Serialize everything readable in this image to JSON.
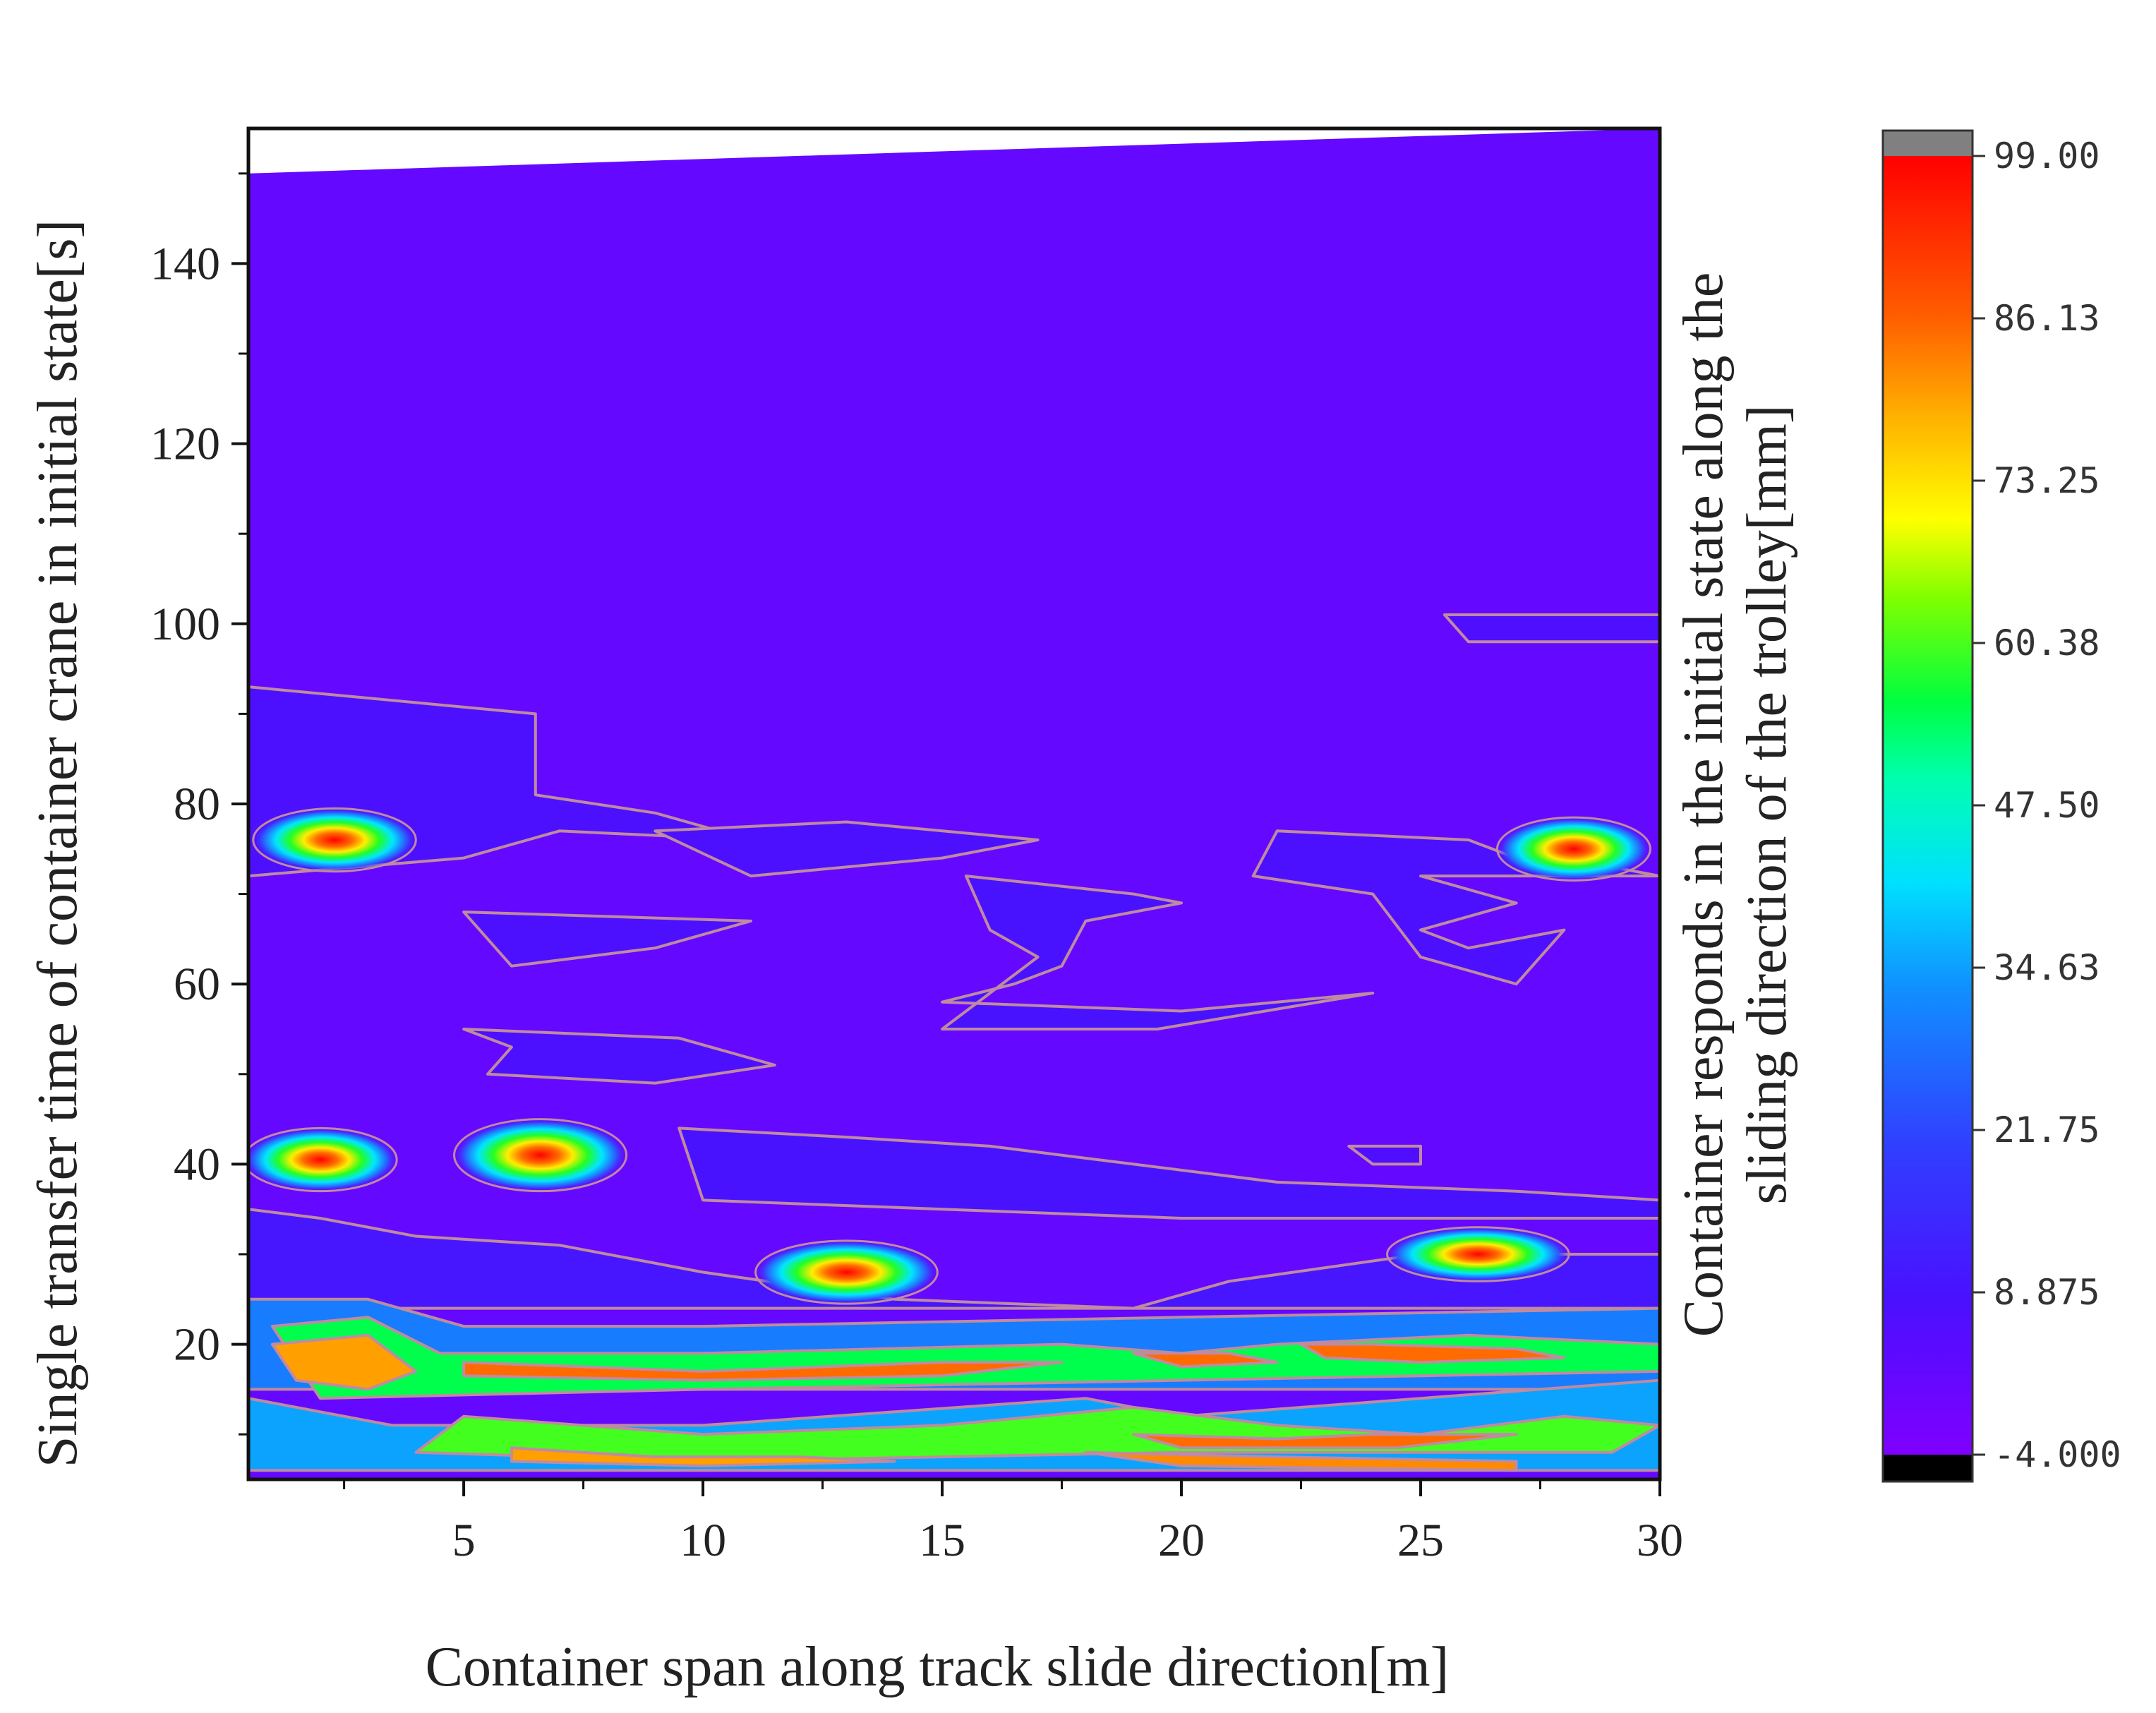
{
  "chart_data": {
    "type": "heatmap",
    "title": "",
    "xlabel": "Container span along track slide direction[m]",
    "ylabel": "Single transfer time of container crane in initial state[s]",
    "colorbar_label": [
      "Container responds in the initial state along the",
      "sliding direction of the trolley[mm]"
    ],
    "xlim": [
      0.5,
      30
    ],
    "ylim": [
      5,
      155
    ],
    "x_ticks": [
      5,
      10,
      15,
      20,
      25,
      30
    ],
    "y_ticks": [
      20,
      40,
      60,
      80,
      100,
      120,
      140
    ],
    "colorbar_ticks": [
      "99.00",
      "86.13",
      "73.25",
      "60.38",
      "47.50",
      "34.63",
      "21.75",
      "8.875",
      "-4.000"
    ],
    "value_range": [
      -4.0,
      99.0
    ],
    "colormap": [
      "#000000",
      "#7f00ff",
      "#3030ff",
      "#00aaff",
      "#00ffff",
      "#00ff55",
      "#66ff00",
      "#ffff00",
      "#ff9900",
      "#ff2200",
      "#ff0000",
      "#808080"
    ],
    "background_value": 2,
    "grid": false,
    "contour_color": "#c08aa0",
    "top_boundary": [
      [
        0.5,
        150
      ],
      [
        30,
        155
      ]
    ],
    "regions": [
      {
        "level": "low",
        "value": 8,
        "points": [
          [
            0.5,
            93
          ],
          [
            6.5,
            90
          ],
          [
            6.5,
            81
          ],
          [
            9,
            79
          ],
          [
            11,
            76
          ],
          [
            7,
            77
          ],
          [
            5,
            74
          ],
          [
            0.5,
            72
          ]
        ]
      },
      {
        "level": "low",
        "value": 8,
        "points": [
          [
            9,
            77
          ],
          [
            13,
            78
          ],
          [
            17,
            76
          ],
          [
            15,
            74
          ],
          [
            11,
            72
          ]
        ]
      },
      {
        "level": "low",
        "value": 8,
        "points": [
          [
            5,
            68
          ],
          [
            11,
            67
          ],
          [
            9,
            64
          ],
          [
            6,
            62
          ]
        ]
      },
      {
        "level": "low",
        "value": 9,
        "points": [
          [
            15.5,
            72
          ],
          [
            19,
            70
          ],
          [
            20,
            69
          ],
          [
            18,
            67
          ],
          [
            17.5,
            62
          ],
          [
            16.5,
            60
          ],
          [
            15,
            58
          ],
          [
            20,
            57
          ],
          [
            24,
            59
          ],
          [
            19.5,
            55
          ],
          [
            15,
            55
          ],
          [
            17,
            63
          ],
          [
            16,
            66
          ]
        ]
      },
      {
        "level": "low",
        "value": 8,
        "points": [
          [
            5,
            55
          ],
          [
            9.5,
            54
          ],
          [
            11.5,
            51
          ],
          [
            9,
            49
          ],
          [
            5.5,
            50
          ],
          [
            6,
            53
          ]
        ]
      },
      {
        "level": "low",
        "value": 8,
        "points": [
          [
            22,
            77
          ],
          [
            26,
            76
          ],
          [
            27,
            74
          ],
          [
            29,
            73
          ],
          [
            30,
            72
          ],
          [
            25,
            72
          ],
          [
            27,
            69
          ],
          [
            25,
            66
          ],
          [
            26,
            64
          ],
          [
            28,
            66
          ],
          [
            27,
            60
          ],
          [
            25,
            63
          ],
          [
            24,
            70
          ],
          [
            21.5,
            72
          ]
        ]
      },
      {
        "level": "low",
        "value": 7,
        "points": [
          [
            25.5,
            101
          ],
          [
            30,
            101
          ],
          [
            30,
            98
          ],
          [
            26,
            98
          ]
        ]
      },
      {
        "level": "low",
        "value": 7,
        "points": [
          [
            23.5,
            42
          ],
          [
            25,
            42
          ],
          [
            25,
            40
          ],
          [
            24,
            40
          ]
        ]
      },
      {
        "level": "low",
        "value": 10,
        "points": [
          [
            0.5,
            35
          ],
          [
            2,
            34
          ],
          [
            4,
            32
          ],
          [
            7,
            31
          ],
          [
            10,
            28
          ],
          [
            14,
            25
          ],
          [
            19,
            24
          ],
          [
            21,
            27
          ],
          [
            25,
            30
          ],
          [
            30,
            30
          ],
          [
            30,
            24
          ],
          [
            0.5,
            24
          ]
        ]
      },
      {
        "level": "low",
        "value": 9,
        "points": [
          [
            9.5,
            44
          ],
          [
            13,
            43
          ],
          [
            16,
            42
          ],
          [
            19,
            40
          ],
          [
            22,
            38
          ],
          [
            27,
            37
          ],
          [
            30,
            36
          ],
          [
            30,
            34
          ],
          [
            20,
            34
          ],
          [
            10,
            36
          ]
        ]
      },
      {
        "level": "mid",
        "value": 30,
        "points": [
          [
            0.5,
            25
          ],
          [
            3,
            25
          ],
          [
            5,
            22
          ],
          [
            10,
            22
          ],
          [
            20,
            23
          ],
          [
            30,
            24
          ],
          [
            30,
            15
          ],
          [
            0.5,
            15
          ]
        ]
      },
      {
        "level": "mid",
        "value": 35,
        "points": [
          [
            0.5,
            14
          ],
          [
            3.5,
            11
          ],
          [
            10,
            11
          ],
          [
            18,
            14
          ],
          [
            20,
            12
          ],
          [
            25,
            14
          ],
          [
            30,
            16
          ],
          [
            30,
            6
          ],
          [
            0.5,
            6
          ]
        ]
      },
      {
        "level": "high",
        "value": 55,
        "points": [
          [
            1,
            22
          ],
          [
            3,
            23
          ],
          [
            4.5,
            19
          ],
          [
            10,
            19
          ],
          [
            17.5,
            20
          ],
          [
            20,
            19
          ],
          [
            22,
            20
          ],
          [
            26,
            21
          ],
          [
            30,
            20
          ],
          [
            30,
            17
          ],
          [
            20,
            16
          ],
          [
            10,
            15
          ],
          [
            2,
            14
          ]
        ]
      },
      {
        "level": "high",
        "value": 60,
        "points": [
          [
            5,
            12
          ],
          [
            10,
            10
          ],
          [
            15,
            11
          ],
          [
            19,
            13
          ],
          [
            22,
            11
          ],
          [
            25,
            10
          ],
          [
            28,
            12
          ],
          [
            30,
            11
          ],
          [
            29,
            8
          ],
          [
            20,
            8
          ],
          [
            10,
            7
          ],
          [
            4,
            8
          ]
        ]
      },
      {
        "level": "hot",
        "value": 80,
        "points": [
          [
            1,
            20
          ],
          [
            3,
            21
          ],
          [
            4,
            17
          ],
          [
            3,
            15
          ],
          [
            1.5,
            16
          ]
        ]
      },
      {
        "level": "hot",
        "value": 85,
        "points": [
          [
            5,
            18
          ],
          [
            10,
            17
          ],
          [
            15,
            18
          ],
          [
            17.5,
            18
          ],
          [
            15,
            16.5
          ],
          [
            10,
            16
          ],
          [
            5,
            16.5
          ]
        ]
      },
      {
        "level": "hot",
        "value": 85,
        "points": [
          [
            19,
            19
          ],
          [
            21,
            19
          ],
          [
            22,
            18
          ],
          [
            20,
            17.5
          ]
        ]
      },
      {
        "level": "hot",
        "value": 85,
        "points": [
          [
            22.5,
            20
          ],
          [
            24,
            20
          ],
          [
            27,
            19.5
          ],
          [
            28,
            18.5
          ],
          [
            25,
            18
          ],
          [
            23,
            18.5
          ]
        ]
      },
      {
        "level": "hot",
        "value": 85,
        "points": [
          [
            19,
            10
          ],
          [
            22,
            9.5
          ],
          [
            24,
            10
          ],
          [
            27,
            10
          ],
          [
            24.5,
            8.5
          ],
          [
            20,
            8.5
          ]
        ]
      },
      {
        "level": "hot",
        "value": 80,
        "points": [
          [
            6,
            8.5
          ],
          [
            9,
            7.5
          ],
          [
            12,
            7.5
          ],
          [
            14,
            7
          ],
          [
            10,
            6.5
          ],
          [
            6,
            7
          ]
        ]
      },
      {
        "level": "hot",
        "value": 82,
        "points": [
          [
            18,
            8
          ],
          [
            22,
            7.5
          ],
          [
            27,
            7
          ],
          [
            27,
            6
          ],
          [
            20,
            6.5
          ]
        ]
      },
      {
        "level": "hotspot",
        "value": 80,
        "cx": 2.3,
        "cy": 76,
        "rx": 1.7,
        "ry": 3.5
      },
      {
        "level": "hotspot",
        "value": 80,
        "cx": 28.2,
        "cy": 75,
        "rx": 1.6,
        "ry": 3.5
      },
      {
        "level": "hotspot",
        "value": 80,
        "cx": 2,
        "cy": 40.5,
        "rx": 1.6,
        "ry": 3.5
      },
      {
        "level": "hotspot",
        "value": 80,
        "cx": 6.6,
        "cy": 41,
        "rx": 1.8,
        "ry": 4
      },
      {
        "level": "hotspot",
        "value": 80,
        "cx": 13,
        "cy": 28,
        "rx": 1.9,
        "ry": 3.5
      },
      {
        "level": "hotspot",
        "value": 80,
        "cx": 26.2,
        "cy": 30,
        "rx": 1.9,
        "ry": 3
      }
    ]
  }
}
